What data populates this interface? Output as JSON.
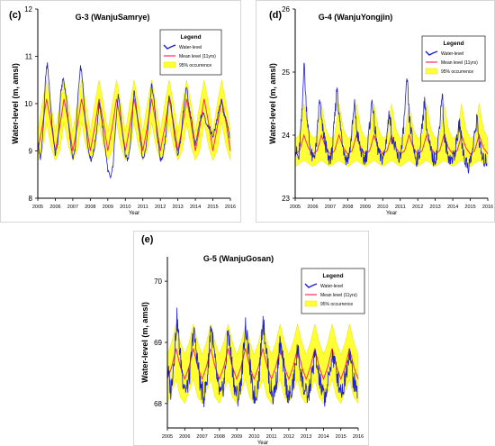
{
  "colors": {
    "water": "#2020d0",
    "mean": "#ff2a5a",
    "band": "#ffff33",
    "band_edge": "#e6e600",
    "axis": "#000000"
  },
  "chart_data": [
    {
      "type": "line",
      "panel_label": "(c)",
      "title": "G-3 (WanjuSamrye)",
      "xlabel": "Year",
      "ylabel": "Water-level (m, amsl)",
      "x_ticks": [
        "2005",
        "2006",
        "2007",
        "2008",
        "2009",
        "2010",
        "2011",
        "2012",
        "2013",
        "2014",
        "2015",
        "2016"
      ],
      "y_ticks": [
        "8",
        "9",
        "10",
        "11",
        "12"
      ],
      "xlim": [
        2005,
        2016
      ],
      "ylim": [
        8,
        12
      ],
      "legend": {
        "title": "Legend",
        "position": "top-right",
        "entries": [
          "Water-level",
          "Mean level (11yrs)",
          "95% occurrence"
        ]
      },
      "series": [
        {
          "name": "Water-level",
          "role": "water",
          "noise": 0.05,
          "x": [
            2005.0,
            2005.15,
            2005.3,
            2005.45,
            2005.55,
            2005.65,
            2005.8,
            2006.0,
            2006.15,
            2006.3,
            2006.45,
            2006.6,
            2006.8,
            2007.0,
            2007.15,
            2007.3,
            2007.45,
            2007.55,
            2007.7,
            2007.9,
            2008.05,
            2008.2,
            2008.35,
            2008.5,
            2008.6,
            2008.8,
            2009.0,
            2009.15,
            2009.3,
            2009.45,
            2009.6,
            2009.8,
            2010.0,
            2010.15,
            2010.3,
            2010.5,
            2010.6,
            2010.8,
            2011.0,
            2011.15,
            2011.3,
            2011.5,
            2011.6,
            2011.8,
            2012.0,
            2012.15,
            2012.3,
            2012.5,
            2012.6,
            2012.8,
            2013.0,
            2013.15,
            2013.3,
            2013.5,
            2013.6,
            2013.8,
            2014.0,
            2014.15,
            2014.3,
            2014.5,
            2014.6,
            2014.8,
            2015.0,
            2015.15,
            2015.3,
            2015.5,
            2015.6,
            2015.8,
            2015.95
          ],
          "y": [
            9.2,
            8.8,
            9.4,
            10.6,
            10.85,
            10.4,
            9.6,
            8.9,
            9.2,
            10.2,
            10.55,
            10.2,
            9.4,
            8.8,
            9.1,
            10.2,
            10.8,
            10.5,
            9.7,
            9.0,
            8.8,
            9.0,
            9.4,
            10.0,
            9.8,
            9.2,
            8.6,
            8.4,
            8.7,
            9.6,
            10.2,
            9.5,
            8.9,
            8.8,
            9.2,
            10.3,
            10.0,
            9.4,
            8.8,
            9.0,
            9.5,
            10.4,
            10.2,
            9.4,
            8.8,
            8.9,
            9.3,
            10.2,
            10.0,
            9.3,
            8.9,
            9.2,
            9.8,
            10.4,
            10.0,
            9.6,
            9.1,
            9.4,
            9.7,
            9.8,
            9.6,
            9.5,
            9.3,
            9.5,
            9.8,
            10.1,
            9.8,
            9.6,
            9.3
          ]
        },
        {
          "name": "Mean level (11yrs)",
          "role": "mean",
          "x": [
            2005.0,
            2005.25,
            2005.5,
            2005.75,
            2006.0
          ],
          "y": [
            9.0,
            9.5,
            10.1,
            9.6,
            9.0
          ]
        },
        {
          "name": "95% occurrence",
          "role": "band",
          "x": [
            2005.0,
            2005.25,
            2005.5,
            2005.75,
            2006.0
          ],
          "y_low": [
            8.8,
            9.0,
            9.6,
            9.1,
            8.8
          ],
          "y_high": [
            9.4,
            10.0,
            10.5,
            10.0,
            9.4
          ]
        }
      ]
    },
    {
      "type": "line",
      "panel_label": "(d)",
      "title": "G-4 (WanjuYongjin)",
      "xlabel": "Year",
      "ylabel": "Water-level (m, amsl)",
      "x_ticks": [
        "2005",
        "2006",
        "2007",
        "2008",
        "2009",
        "2010",
        "2011",
        "2012",
        "2013",
        "2014",
        "2015",
        "2016"
      ],
      "y_ticks": [
        "23",
        "24",
        "25",
        "26"
      ],
      "xlim": [
        2005,
        2016
      ],
      "ylim": [
        23,
        26
      ],
      "legend": {
        "title": "Legend",
        "position": "top-right",
        "entries": [
          "Water-level",
          "Mean level (11yrs)",
          "95% occurrence"
        ]
      },
      "series": [
        {
          "name": "Water-level",
          "role": "water",
          "noise": 0.12,
          "x": [
            2005.0,
            2005.2,
            2005.4,
            2005.5,
            2005.6,
            2005.8,
            2006.0,
            2006.2,
            2006.4,
            2006.5,
            2006.7,
            2006.9,
            2007.1,
            2007.4,
            2007.5,
            2007.7,
            2007.9,
            2008.1,
            2008.4,
            2008.5,
            2008.7,
            2008.9,
            2009.1,
            2009.4,
            2009.5,
            2009.7,
            2009.9,
            2010.1,
            2010.4,
            2010.5,
            2010.7,
            2010.9,
            2011.1,
            2011.4,
            2011.5,
            2011.7,
            2011.9,
            2012.1,
            2012.4,
            2012.5,
            2012.7,
            2012.9,
            2013.1,
            2013.4,
            2013.5,
            2013.7,
            2013.9,
            2014.1,
            2014.4,
            2014.5,
            2014.7,
            2014.9,
            2015.1,
            2015.4,
            2015.5,
            2015.7,
            2015.95
          ],
          "y": [
            23.8,
            23.6,
            24.4,
            25.2,
            24.6,
            23.9,
            23.6,
            23.8,
            24.6,
            24.2,
            23.9,
            23.6,
            23.7,
            24.8,
            24.3,
            23.9,
            23.6,
            23.7,
            24.5,
            24.1,
            23.8,
            23.6,
            23.7,
            24.6,
            24.2,
            23.8,
            23.6,
            23.7,
            24.4,
            24.0,
            23.8,
            23.6,
            23.8,
            24.9,
            24.3,
            23.9,
            23.6,
            23.7,
            24.6,
            24.1,
            23.8,
            23.6,
            23.7,
            24.7,
            24.0,
            23.7,
            23.6,
            23.7,
            24.2,
            23.9,
            23.6,
            23.5,
            23.7,
            24.3,
            23.9,
            23.6,
            23.6
          ]
        },
        {
          "name": "Mean level (11yrs)",
          "role": "mean",
          "x": [
            2005.0,
            2005.25,
            2005.5,
            2005.75,
            2006.0
          ],
          "y": [
            23.7,
            23.75,
            24.0,
            23.8,
            23.7
          ]
        },
        {
          "name": "95% occurrence",
          "role": "band",
          "x": [
            2005.0,
            2005.25,
            2005.5,
            2005.75,
            2006.0
          ],
          "y_low": [
            23.5,
            23.55,
            23.6,
            23.55,
            23.5
          ],
          "y_high": [
            23.95,
            24.0,
            24.5,
            24.1,
            23.95
          ]
        }
      ]
    },
    {
      "type": "line",
      "panel_label": "(e)",
      "title": "G-5 (WanjuGosan)",
      "xlabel": "Year",
      "ylabel": "Water-level (m, amsl)",
      "x_ticks": [
        "2005",
        "2006",
        "2007",
        "2008",
        "2009",
        "2010",
        "2011",
        "2012",
        "2013",
        "2014",
        "2015",
        "2016"
      ],
      "y_ticks": [
        "68",
        "69",
        "70"
      ],
      "xlim": [
        2005,
        2016
      ],
      "ylim": [
        67.6,
        70.4
      ],
      "legend": {
        "title": "Legend",
        "position": "top-right",
        "entries": [
          "Water-level",
          "Mean level (11yrs)",
          "95% occurrence"
        ]
      },
      "series": [
        {
          "name": "Water-level",
          "role": "water",
          "noise": 0.18,
          "x": [
            2005.0,
            2005.2,
            2005.4,
            2005.55,
            2005.7,
            2005.9,
            2006.1,
            2006.3,
            2006.5,
            2006.7,
            2006.9,
            2007.1,
            2007.3,
            2007.5,
            2007.7,
            2007.9,
            2008.1,
            2008.3,
            2008.5,
            2008.7,
            2008.9,
            2009.1,
            2009.3,
            2009.5,
            2009.7,
            2009.9,
            2010.1,
            2010.3,
            2010.5,
            2010.7,
            2010.9,
            2011.1,
            2011.3,
            2011.5,
            2011.7,
            2011.9,
            2012.1,
            2012.3,
            2012.5,
            2012.7,
            2012.9,
            2013.1,
            2013.3,
            2013.5,
            2013.7,
            2013.9,
            2014.1,
            2014.3,
            2014.5,
            2014.7,
            2014.9,
            2015.1,
            2015.3,
            2015.5,
            2015.7,
            2015.95
          ],
          "y": [
            68.6,
            68.2,
            68.8,
            69.4,
            68.9,
            68.4,
            68.2,
            68.5,
            69.2,
            68.8,
            68.3,
            68.1,
            68.4,
            69.3,
            68.8,
            68.3,
            68.1,
            68.4,
            69.2,
            68.7,
            68.2,
            68.1,
            68.5,
            69.3,
            68.8,
            68.2,
            68.1,
            68.5,
            69.4,
            68.9,
            68.3,
            68.1,
            68.4,
            69.0,
            68.6,
            68.2,
            68.1,
            68.4,
            68.9,
            68.5,
            68.2,
            68.1,
            68.4,
            68.8,
            68.5,
            68.2,
            68.1,
            68.4,
            68.8,
            68.6,
            68.3,
            68.2,
            68.5,
            68.9,
            68.4,
            68.2
          ]
        },
        {
          "name": "Mean level (11yrs)",
          "role": "mean",
          "x": [
            2005.0,
            2005.25,
            2005.5,
            2005.75,
            2006.0
          ],
          "y": [
            68.4,
            68.6,
            68.9,
            68.6,
            68.4
          ]
        },
        {
          "name": "95% occurrence",
          "role": "band",
          "x": [
            2005.0,
            2005.25,
            2005.5,
            2005.75,
            2006.0
          ],
          "y_low": [
            68.0,
            68.2,
            68.4,
            68.1,
            68.0
          ],
          "y_high": [
            68.8,
            69.0,
            69.3,
            69.0,
            68.8
          ]
        }
      ]
    }
  ]
}
